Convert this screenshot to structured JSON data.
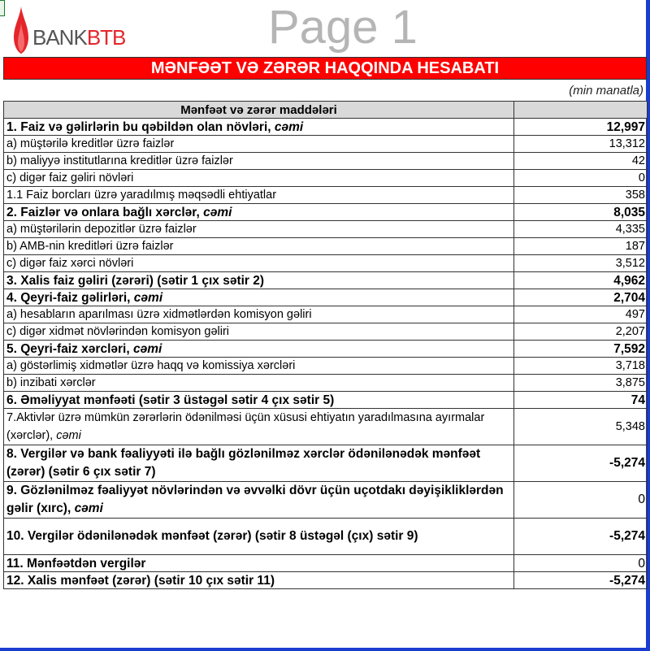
{
  "logo": {
    "text_bank": "BANK",
    "text_btb": "BTB",
    "brand_color": "#e4262b"
  },
  "title": "MƏNFƏƏT VƏ ZƏRƏR HAQQINDA HESABATI",
  "unit": "(min manatla)",
  "table": {
    "header": {
      "label": "Mənfəət və zərər maddələri",
      "value": ""
    },
    "rows": [
      {
        "label": "1. Faiz və gəlirlərin bu qəbildən olan növləri, ",
        "italic": "cəmi",
        "value": "12,997",
        "bold": true
      },
      {
        "label": "a) müştərilə kreditlər üzrə faizlər",
        "value": "13,312"
      },
      {
        "label": "b) maliyyə institutlarına kreditlər üzrə faizlər",
        "value": "42"
      },
      {
        "label": "c) digər faiz gəliri növləri",
        "value": "0"
      },
      {
        "label": "1.1 Faiz borcları üzrə yaradılmış məqsədli ehtiyatlar",
        "value": "358"
      },
      {
        "label": "2. Faizlər və onlara bağlı xərclər, ",
        "italic": "cəmi",
        "value": "8,035",
        "bold": true
      },
      {
        "label": "a) müştərilərin depozitlər üzrə faizlər",
        "value": "4,335"
      },
      {
        "label": "b) AMB-nin kreditləri üzrə faizlər",
        "value": "187"
      },
      {
        "label": "c) digər faiz xərci növləri",
        "value": "3,512"
      },
      {
        "label": "3. Xalis faiz gəliri (zərəri) (sətir 1 çıx sətir 2)",
        "value": "4,962",
        "bold": true
      },
      {
        "label": "4. Qeyri-faiz gəlirləri, ",
        "italic": "cəmi",
        "value": "2,704",
        "bold": true
      },
      {
        "label": "a) hesabların aparılması üzrə xidmətlərdən komisyon gəliri",
        "value": "497"
      },
      {
        "label": "c) digər xidmət növlərindən komisyon gəliri",
        "value": "2,207"
      },
      {
        "label": "5. Qeyri-faiz xərcləri, ",
        "italic": "cəmi",
        "value": "7,592",
        "bold": true
      },
      {
        "label": "a) göstərlimiş xidmətlər üzrə haqq və komissiya xərcləri",
        "value": "3,718"
      },
      {
        "label": "b) inzibati xərclər",
        "value": "3,875"
      },
      {
        "label": "6. Əməliyyat mənfəəti (sətir 3 üstəgəl sətir 4 çıx sətir 5)",
        "value": "74",
        "bold": true
      },
      {
        "label": "7.Aktivlər üzrə mümkün zərərlərin ödənilməsi üçün xüsusi ehtiyatın yaradılmasına ayırmalar (xərclər), ",
        "italic": "cəmi",
        "value": "5,348",
        "two": true
      },
      {
        "label": "8. Vergilər və bank fəaliyyəti ilə bağlı gözlənilməz xərclər ödənilənədək mənfəət (zərər) (sətir 6 çıx sətir 7)",
        "value": "-5,274",
        "bold": true,
        "two": true
      },
      {
        "label": "9. Gözlənilməz fəaliyyət növlərindən və əvvəlki dövr üçün uçotdakı dəyişikliklərdən gəlir (xırc), ",
        "italic": "cəmi",
        "value": "0",
        "bold": true,
        "two": true,
        "value_regular": true
      },
      {
        "label": "10. Vergilər ödənilənədək mənfəət (zərər) (sətir 8 üstəgəl (çıx) sətir 9)",
        "value": "-5,274",
        "bold": true,
        "two": true
      },
      {
        "label": "11. Mənfəətdən vergilər",
        "value": "0",
        "bold": true,
        "value_regular": true
      },
      {
        "label": "12. Xalis mənfəət (zərər) (sətir 10 çıx sətir 11)",
        "value": "-5,274",
        "bold": true
      }
    ]
  },
  "watermark": "Page 1"
}
